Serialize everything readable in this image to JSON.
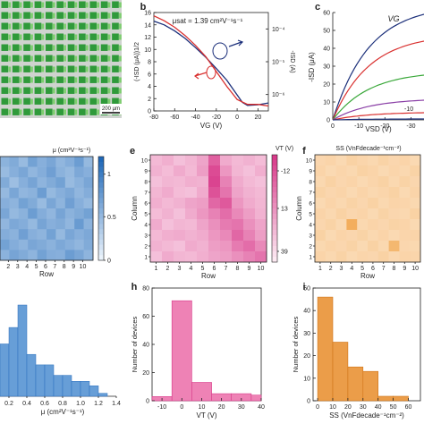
{
  "panels": {
    "a": {
      "letter": "",
      "scalebar_label": "200 µm"
    },
    "b": {
      "letter": "b",
      "annotation": "μsat = 1.39 cm²V⁻¹s⁻¹",
      "xlabel": "VG (V)",
      "ylabel_left": "(-ISD (μA))1/2",
      "ylabel_right": "-ISD (A)"
    },
    "c": {
      "letter": "c",
      "annotation": "VG",
      "xlabel": "VSD (V)",
      "ylabel": "-ISD (μA)",
      "curve_label": "-10"
    },
    "d": {
      "letter": "",
      "xlabel": "Row",
      "colorbar_title": "μ (cm²V⁻¹s⁻¹)"
    },
    "e": {
      "letter": "e",
      "xlabel": "Row",
      "ylabel": "Column",
      "colorbar_title": "VT (V)"
    },
    "f": {
      "letter": "f",
      "xlabel": "Row",
      "ylabel": "Column",
      "colorbar_title": "SS (VnFdecade⁻¹cm⁻²)"
    },
    "g": {
      "letter": "",
      "xlabel": "μ (cm²V⁻¹s⁻¹)"
    },
    "h": {
      "letter": "h",
      "xlabel": "VT (V)",
      "ylabel": "Number of devices"
    },
    "i": {
      "letter": "i",
      "xlabel": "SS (VnFdecade⁻¹cm⁻²)",
      "ylabel": "Number of devices"
    }
  },
  "colors": {
    "blue": "#2f74c0",
    "pink": "#e6559a",
    "orange": "#e58a2a",
    "green": "#3aa83a",
    "red": "#d9302f",
    "navy": "#1b2f7a",
    "purple": "#8a3fa6"
  },
  "chart_data": [
    {
      "id": "b",
      "type": "line",
      "x_ticks": [
        -80,
        -60,
        -40,
        -20,
        0,
        20
      ],
      "xlim": [
        -80,
        30
      ],
      "y_left_ticks": [
        0,
        2,
        4,
        6,
        8,
        10,
        12,
        14,
        16
      ],
      "ylim_left": [
        0,
        16
      ],
      "y_right_ticks": [
        "10⁻⁴",
        "10⁻⁵",
        "10⁻⁶"
      ],
      "y_right_log": true,
      "ylim_right_exp": [
        -6.5,
        -3.5
      ],
      "series": [
        {
          "axis": "left",
          "color": "navy",
          "x": [
            -80,
            -70,
            -60,
            -50,
            -40,
            -30,
            -20,
            -10,
            0,
            5,
            10,
            20,
            30
          ],
          "y": [
            14.6,
            14.0,
            13.0,
            11.8,
            10.3,
            8.7,
            6.9,
            5.0,
            2.6,
            1.4,
            0.9,
            1.0,
            1.3
          ]
        },
        {
          "axis": "right",
          "color": "red",
          "x": [
            -80,
            -70,
            -60,
            -50,
            -40,
            -30,
            -20,
            -10,
            0,
            10,
            20,
            30
          ],
          "y_exp": [
            -3.6,
            -3.75,
            -3.95,
            -4.2,
            -4.5,
            -4.85,
            -5.3,
            -5.75,
            -6.15,
            -6.3,
            -6.3,
            -6.35
          ]
        }
      ]
    },
    {
      "id": "c",
      "type": "line",
      "x_ticks": [
        0,
        -10,
        -20,
        -30
      ],
      "xlim": [
        0,
        -35
      ],
      "y_ticks": [
        0,
        10,
        20,
        30,
        40,
        50,
        60
      ],
      "ylim": [
        0,
        60
      ],
      "series": [
        {
          "color": "navy",
          "peak": 59
        },
        {
          "color": "red",
          "peak": 44
        },
        {
          "color": "green",
          "peak": 25
        },
        {
          "color": "purple",
          "peak": 11
        },
        {
          "color": "red",
          "peak": 4
        },
        {
          "color": "navy",
          "peak": 0.5
        }
      ]
    },
    {
      "id": "d",
      "type": "heatmap",
      "colorscale": "blue",
      "x_ticks": [
        2,
        3,
        4,
        5,
        6,
        7,
        8,
        9,
        10
      ],
      "colorbar_ticks": [
        0,
        0.5,
        1
      ],
      "zlim": [
        0,
        1.2
      ],
      "rows": 10,
      "cols": 10,
      "values": [
        [
          0.55,
          0.62,
          0.48,
          0.7,
          0.58,
          0.66,
          0.52,
          0.6,
          0.74,
          0.5
        ],
        [
          0.48,
          0.58,
          0.66,
          0.52,
          0.6,
          0.72,
          0.56,
          0.5,
          0.64,
          0.58
        ],
        [
          0.62,
          0.45,
          0.58,
          0.68,
          0.54,
          0.62,
          0.7,
          0.48,
          0.56,
          0.66
        ],
        [
          0.5,
          0.66,
          0.52,
          0.56,
          0.74,
          0.5,
          0.58,
          0.64,
          0.52,
          0.6
        ],
        [
          0.58,
          0.54,
          0.7,
          0.62,
          0.48,
          0.66,
          0.54,
          0.72,
          0.58,
          0.5
        ],
        [
          0.66,
          0.5,
          0.56,
          0.74,
          0.6,
          0.52,
          0.68,
          0.56,
          0.62,
          0.7
        ],
        [
          0.52,
          0.64,
          0.6,
          0.5,
          0.68,
          0.58,
          0.62,
          0.52,
          0.76,
          0.56
        ],
        [
          0.6,
          0.56,
          0.72,
          0.58,
          0.54,
          0.7,
          0.5,
          0.66,
          0.58,
          0.64
        ],
        [
          0.7,
          0.6,
          0.54,
          0.66,
          0.62,
          0.56,
          0.64,
          0.58,
          0.52,
          0.62
        ],
        [
          0.56,
          0.68,
          0.62,
          0.54,
          0.7,
          0.6,
          0.58,
          0.74,
          0.66,
          0.54
        ]
      ]
    },
    {
      "id": "e",
      "type": "heatmap",
      "colorscale": "pink",
      "x_ticks": [
        1,
        2,
        3,
        4,
        5,
        6,
        7,
        8,
        9,
        10
      ],
      "y_ticks": [
        1,
        2,
        3,
        4,
        5,
        6,
        7,
        8,
        9,
        10
      ],
      "colorbar_ticks": [
        "-12",
        "13",
        "39"
      ],
      "zlim": [
        -12,
        39
      ],
      "rows": 10,
      "cols": 10,
      "values": [
        [
          2,
          5,
          0,
          3,
          8,
          28,
          6,
          2,
          4,
          1
        ],
        [
          4,
          1,
          6,
          2,
          10,
          34,
          12,
          3,
          0,
          5
        ],
        [
          0,
          3,
          2,
          5,
          4,
          36,
          18,
          6,
          2,
          0
        ],
        [
          3,
          6,
          1,
          0,
          6,
          32,
          22,
          8,
          4,
          2
        ],
        [
          5,
          2,
          4,
          8,
          10,
          26,
          30,
          12,
          6,
          3
        ],
        [
          1,
          4,
          0,
          6,
          12,
          18,
          24,
          16,
          10,
          4
        ],
        [
          6,
          0,
          3,
          2,
          8,
          14,
          20,
          22,
          14,
          8
        ],
        [
          2,
          5,
          6,
          4,
          6,
          12,
          16,
          26,
          18,
          10
        ],
        [
          4,
          2,
          0,
          6,
          4,
          10,
          12,
          20,
          24,
          16
        ],
        [
          0,
          6,
          3,
          2,
          5,
          8,
          10,
          14,
          18,
          22
        ]
      ]
    },
    {
      "id": "f",
      "type": "heatmap",
      "colorscale": "orange",
      "x_ticks": [
        1,
        2,
        3,
        4,
        5,
        6,
        7,
        8,
        9,
        10
      ],
      "y_ticks": [
        1,
        2,
        3,
        4,
        5,
        6,
        7,
        8,
        9,
        10
      ],
      "zlim": [
        0,
        60
      ],
      "rows": 10,
      "cols": 10,
      "values": [
        [
          14,
          16,
          12,
          18,
          15,
          13,
          17,
          14,
          16,
          12
        ],
        [
          16,
          12,
          15,
          13,
          18,
          16,
          12,
          15,
          13,
          17
        ],
        [
          13,
          18,
          14,
          16,
          12,
          15,
          18,
          13,
          17,
          14
        ],
        [
          17,
          14,
          16,
          12,
          16,
          13,
          15,
          18,
          12,
          16
        ],
        [
          12,
          16,
          13,
          17,
          14,
          18,
          13,
          16,
          15,
          13
        ],
        [
          16,
          13,
          18,
          14,
          16,
          12,
          17,
          14,
          13,
          18
        ],
        [
          14,
          17,
          12,
          48,
          13,
          16,
          14,
          17,
          16,
          12
        ],
        [
          18,
          12,
          16,
          14,
          17,
          13,
          16,
          12,
          15,
          16
        ],
        [
          13,
          16,
          14,
          17,
          12,
          18,
          13,
          40,
          14,
          13
        ],
        [
          16,
          13,
          17,
          12,
          15,
          14,
          18,
          13,
          16,
          15
        ]
      ]
    },
    {
      "id": "g",
      "type": "bar",
      "color": "blue",
      "x_ticks": [
        0.2,
        0.4,
        0.6,
        0.8,
        1.0,
        1.2,
        1.4
      ],
      "bin_edges": [
        0.1,
        0.2,
        0.3,
        0.4,
        0.5,
        0.6,
        0.7,
        0.8,
        0.9,
        1.0,
        1.1,
        1.2,
        1.3
      ],
      "values": [
        35,
        46,
        61,
        28,
        21,
        21,
        14,
        14,
        10,
        10,
        7,
        2
      ],
      "ylim": [
        0,
        70
      ]
    },
    {
      "id": "h",
      "type": "bar",
      "color": "pink",
      "x_ticks": [
        -10,
        0,
        10,
        20,
        30,
        40
      ],
      "xlim": [
        -15,
        40
      ],
      "y_ticks": [
        0,
        20,
        40,
        60,
        80
      ],
      "ylim": [
        0,
        80
      ],
      "bin_edges": [
        -15,
        -5,
        5,
        15,
        25,
        35,
        40
      ],
      "values": [
        3,
        71,
        13,
        5,
        5,
        4
      ]
    },
    {
      "id": "i",
      "type": "bar",
      "color": "orange",
      "x_ticks": [
        0,
        10,
        20,
        30,
        40,
        50,
        60
      ],
      "xlim": [
        -3,
        68
      ],
      "y_ticks": [
        0,
        10,
        20,
        30,
        40,
        50
      ],
      "ylim": [
        0,
        50
      ],
      "bin_edges": [
        0,
        10,
        20,
        30,
        40,
        50,
        60
      ],
      "values": [
        46,
        26,
        15,
        13,
        2,
        2
      ]
    }
  ]
}
